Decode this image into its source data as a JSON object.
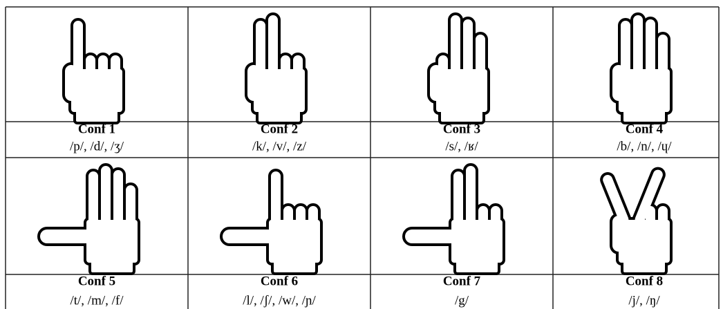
{
  "cells": [
    {
      "label": "Conf 1",
      "phonemes": "/p/, /d/, /ʒ/"
    },
    {
      "label": "Conf 2",
      "phonemes": "/k/, /v/, /z/"
    },
    {
      "label": "Conf 3",
      "phonemes": "/s/, /ʁ/"
    },
    {
      "label": "Conf 4",
      "phonemes": "/b/, /n/, /ɥ/"
    },
    {
      "label": "Conf 5",
      "phonemes": "/t/, /m/, /f/"
    },
    {
      "label": "Conf 6",
      "phonemes": "/l/, /ʃ/, /w/, /ɲ/"
    },
    {
      "label": "Conf 7",
      "phonemes": "/g/"
    },
    {
      "label": "Conf 8",
      "phonemes": "/j/, /ŋ/"
    }
  ]
}
